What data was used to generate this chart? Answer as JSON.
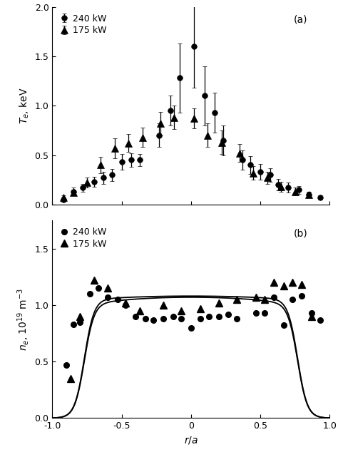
{
  "panel_a_label": "(a)",
  "panel_b_label": "(b)",
  "legend_240": "240 kW",
  "legend_175": "175 kW",
  "ylabel_a": "$T_e$, keV",
  "ylabel_b": "$n_e$, $10^{19}$ m$^{-3}$",
  "Te_240_x": [
    -0.92,
    -0.85,
    -0.78,
    -0.7,
    -0.63,
    -0.57,
    -0.5,
    -0.43,
    -0.37,
    -0.23,
    -0.15,
    -0.08,
    0.02,
    0.1,
    0.17,
    0.23,
    0.37,
    0.43,
    0.5,
    0.57,
    0.63,
    0.7,
    0.78,
    0.85,
    0.93
  ],
  "Te_240_y": [
    0.05,
    0.13,
    0.17,
    0.23,
    0.27,
    0.3,
    0.43,
    0.45,
    0.45,
    0.7,
    0.95,
    1.28,
    1.6,
    1.1,
    0.93,
    0.65,
    0.45,
    0.4,
    0.33,
    0.3,
    0.2,
    0.17,
    0.15,
    0.1,
    0.07
  ],
  "Te_240_err": [
    0.02,
    0.04,
    0.04,
    0.05,
    0.06,
    0.06,
    0.08,
    0.07,
    0.06,
    0.12,
    0.15,
    0.35,
    0.42,
    0.3,
    0.2,
    0.15,
    0.1,
    0.09,
    0.08,
    0.07,
    0.06,
    0.05,
    0.04,
    0.03,
    0.02
  ],
  "Te_175_x": [
    -0.92,
    -0.85,
    -0.75,
    -0.65,
    -0.55,
    -0.45,
    -0.35,
    -0.22,
    -0.12,
    0.02,
    0.12,
    0.22,
    0.35,
    0.45,
    0.55,
    0.65,
    0.75,
    0.85
  ],
  "Te_175_y": [
    0.07,
    0.12,
    0.22,
    0.4,
    0.57,
    0.62,
    0.68,
    0.82,
    0.88,
    0.87,
    0.7,
    0.63,
    0.52,
    0.32,
    0.27,
    0.18,
    0.13,
    0.1
  ],
  "Te_175_err": [
    0.02,
    0.03,
    0.05,
    0.08,
    0.1,
    0.09,
    0.1,
    0.12,
    0.12,
    0.1,
    0.12,
    0.12,
    0.09,
    0.07,
    0.06,
    0.05,
    0.04,
    0.03
  ],
  "ne_240_x": [
    -0.9,
    -0.85,
    -0.8,
    -0.73,
    -0.67,
    -0.6,
    -0.53,
    -0.47,
    -0.4,
    -0.33,
    -0.27,
    -0.2,
    -0.13,
    -0.07,
    0.0,
    0.07,
    0.13,
    0.2,
    0.27,
    0.33,
    0.47,
    0.53,
    0.6,
    0.67,
    0.73,
    0.8,
    0.87,
    0.93
  ],
  "ne_240_y": [
    0.47,
    0.83,
    0.85,
    1.1,
    1.15,
    1.07,
    1.05,
    1.0,
    0.9,
    0.88,
    0.87,
    0.88,
    0.9,
    0.88,
    0.8,
    0.88,
    0.9,
    0.9,
    0.92,
    0.88,
    0.93,
    0.93,
    1.07,
    0.82,
    1.05,
    1.08,
    0.93,
    0.87
  ],
  "ne_175_x": [
    -0.87,
    -0.8,
    -0.7,
    -0.6,
    -0.47,
    -0.37,
    -0.2,
    -0.07,
    0.07,
    0.2,
    0.33,
    0.47,
    0.53,
    0.6,
    0.67,
    0.73,
    0.8,
    0.87
  ],
  "ne_175_y": [
    0.35,
    0.9,
    1.22,
    1.15,
    1.02,
    0.95,
    1.0,
    0.95,
    0.97,
    1.02,
    1.05,
    1.07,
    1.05,
    1.2,
    1.17,
    1.2,
    1.18,
    0.9
  ],
  "ylim_a": [
    0,
    2.0
  ],
  "ylim_b": [
    0,
    1.75
  ],
  "xlim": [
    -1.0,
    1.0
  ],
  "yticks_a": [
    0.0,
    0.5,
    1.0,
    1.5,
    2.0
  ],
  "yticks_b": [
    0.0,
    0.5,
    1.0,
    1.5
  ],
  "xticks": [
    -1.0,
    -0.5,
    0.0,
    0.5,
    1.0
  ],
  "xtick_labels": [
    "-1.0",
    "-0.5",
    "0",
    "0.5",
    "1.0"
  ],
  "color": "black",
  "markersize_circle": 5.5,
  "markersize_triangle": 6.5
}
